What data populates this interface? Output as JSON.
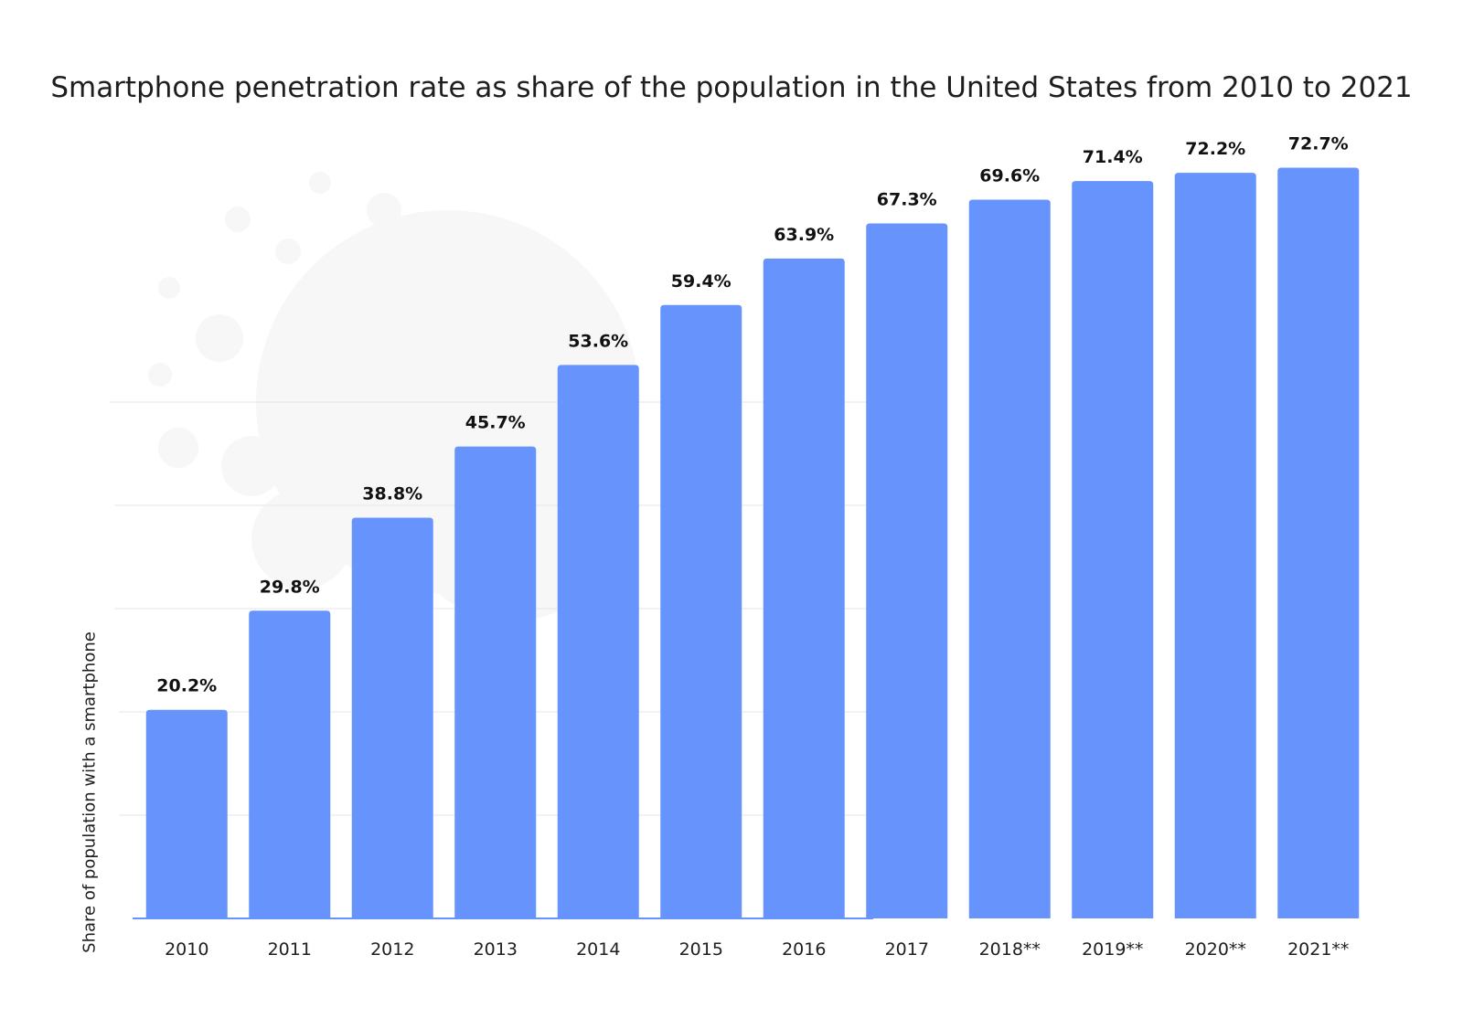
{
  "chart_data": {
    "type": "bar",
    "title": "Smartphone penetration rate as share of the population in the United States from 2010 to 2021",
    "xlabel": "",
    "ylabel": "Share of population with a smartphone",
    "categories": [
      "2010",
      "2011",
      "2012",
      "2013",
      "2014",
      "2015",
      "2016",
      "2017",
      "2018**",
      "2019**",
      "2020**",
      "2021**"
    ],
    "values": [
      20.2,
      29.8,
      38.8,
      45.7,
      53.6,
      59.4,
      63.9,
      67.3,
      69.6,
      71.4,
      72.2,
      72.7
    ],
    "value_labels": [
      "20.2%",
      "29.8%",
      "38.8%",
      "45.7%",
      "53.6%",
      "59.4%",
      "63.9%",
      "67.3%",
      "69.6%",
      "71.4%",
      "72.2%",
      "72.7%"
    ],
    "ylim": [
      0,
      80
    ],
    "grid": true,
    "colors": {
      "bar": "#6694fc",
      "grid": "#e4e6ea",
      "axis": "#6694fc"
    }
  }
}
